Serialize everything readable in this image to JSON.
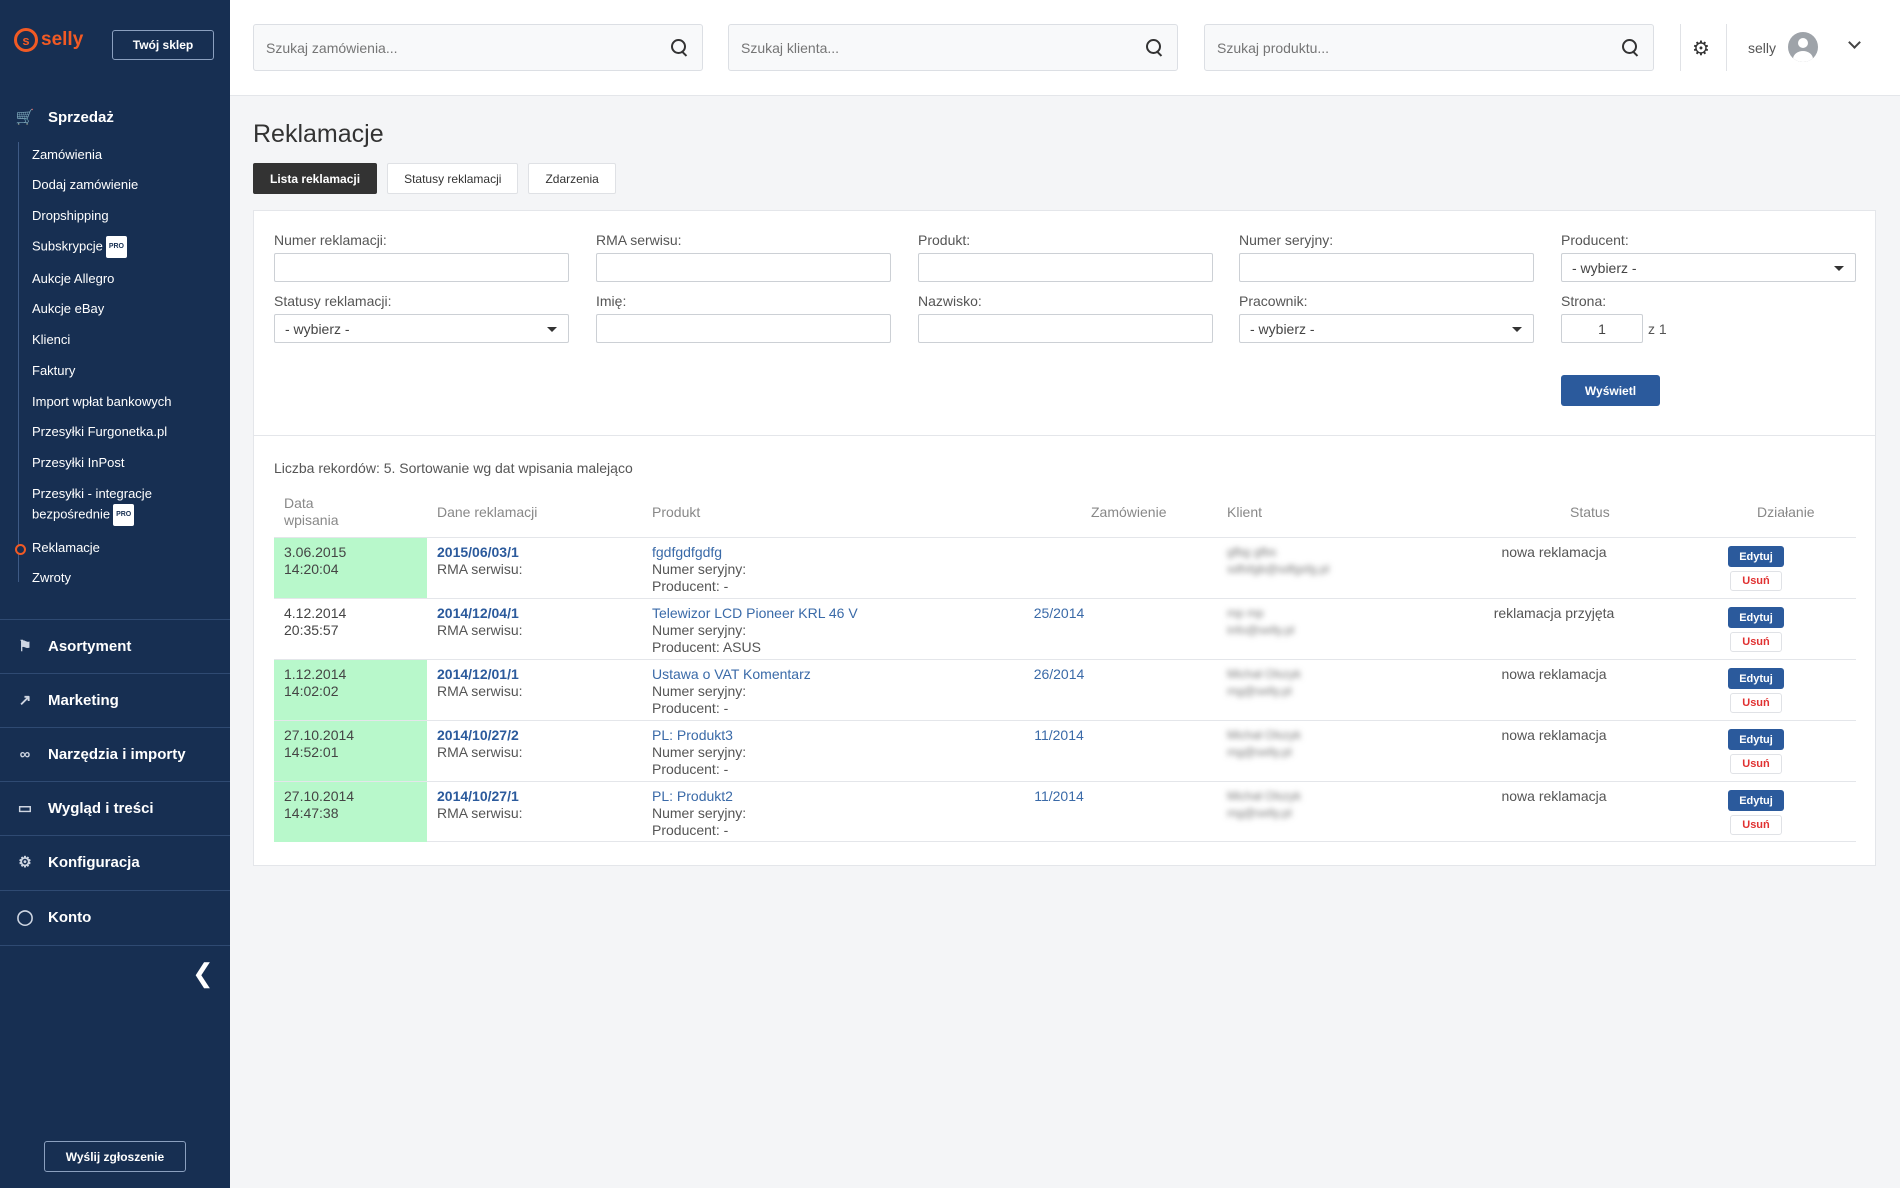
{
  "sidebar": {
    "logo": "selly",
    "shop_button": "Twój sklep",
    "sections": [
      {
        "label": "Sprzedaż",
        "icon": "cart-icon"
      },
      {
        "label": "Asortyment",
        "icon": "tag-icon"
      },
      {
        "label": "Marketing",
        "icon": "chart-icon"
      },
      {
        "label": "Narzędzia i importy",
        "icon": "link-icon"
      },
      {
        "label": "Wygląd i treści",
        "icon": "monitor-icon"
      },
      {
        "label": "Konfiguracja",
        "icon": "gear-icon"
      },
      {
        "label": "Konto",
        "icon": "account-icon"
      }
    ],
    "sub_items": [
      {
        "label": "Zamówienia"
      },
      {
        "label": "Dodaj zamówienie"
      },
      {
        "label": "Dropshipping"
      },
      {
        "label": "Subskrypcje",
        "badge": "PRO"
      },
      {
        "label": "Aukcje Allegro"
      },
      {
        "label": "Aukcje eBay"
      },
      {
        "label": "Klienci"
      },
      {
        "label": "Faktury"
      },
      {
        "label": "Import wpłat bankowych"
      },
      {
        "label": "Przesyłki Furgonetka.pl"
      },
      {
        "label": "Przesyłki InPost"
      },
      {
        "label": "Przesyłki - integracje",
        "label2": "bezpośrednie",
        "badge": "PRO"
      },
      {
        "label": "Reklamacje"
      },
      {
        "label": "Zwroty"
      }
    ],
    "report_button": "Wyślij zgłoszenie"
  },
  "topbar": {
    "search_orders": "Szukaj zamówienia...",
    "search_clients": "Szukaj klienta...",
    "search_products": "Szukaj produktu...",
    "user": "selly"
  },
  "page": {
    "title": "Reklamacje",
    "tabs": [
      "Lista reklamacji",
      "Statusy reklamacji",
      "Zdarzenia"
    ]
  },
  "filters": {
    "numer": "Numer reklamacji:",
    "rma": "RMA serwisu:",
    "produkt": "Produkt:",
    "serial": "Numer seryjny:",
    "producent": "Producent:",
    "producent_value": "- wybierz -",
    "statusy": "Statusy reklamacji:",
    "statusy_value": "- wybierz -",
    "imie": "Imię:",
    "nazwisko": "Nazwisko:",
    "pracownik": "Pracownik:",
    "pracownik_value": "- wybierz -",
    "strona": "Strona:",
    "strona_value": "1",
    "strona_of": "z 1",
    "submit": "Wyświetl"
  },
  "table": {
    "summary": "Liczba rekordów: 5. Sortowanie wg dat wpisania malejąco",
    "headers": {
      "date1": "Data",
      "date2": "wpisania",
      "dane": "Dane reklamacji",
      "produkt": "Produkt",
      "zamowienie": "Zamówienie",
      "klient": "Klient",
      "status": "Status",
      "dzialanie": "Działanie"
    },
    "rma_label": "RMA serwisu:",
    "serial_label": "Numer seryjny:",
    "edit": "Edytuj",
    "delete": "Usuń",
    "rows": [
      {
        "date": "3.06.2015",
        "time": "14:20:04",
        "highlight": true,
        "number": "2015/06/03/1",
        "product": "fgdfgdfgdfg",
        "producer": "Producent: -",
        "order": "",
        "client_name": "gfbg gfbs",
        "client_email": "sdfsfgb@sdfgsfg.pl",
        "status": "nowa reklamacja"
      },
      {
        "date": "4.12.2014",
        "time": "20:35:57",
        "highlight": false,
        "number": "2014/12/04/1",
        "product": "Telewizor LCD Pioneer KRL 46 V",
        "producer": "Producent: ASUS",
        "order": "25/2014",
        "client_name": "mp mp",
        "client_email": "info@selly.pl",
        "status": "reklamacja przyjęta"
      },
      {
        "date": "1.12.2014",
        "time": "14:02:02",
        "highlight": true,
        "number": "2014/12/01/1",
        "product": "Ustawa o VAT Komentarz",
        "producer": "Producent: -",
        "order": "26/2014",
        "client_name": "Michał Olszyk",
        "client_email": "mg@selly.pl",
        "status": "nowa reklamacja"
      },
      {
        "date": "27.10.2014",
        "time": "14:52:01",
        "highlight": true,
        "number": "2014/10/27/2",
        "product": "PL: Produkt3",
        "producer": "Producent: -",
        "order": "11/2014",
        "client_name": "Michał Olszyk",
        "client_email": "mg@selly.pl",
        "status": "nowa reklamacja"
      },
      {
        "date": "27.10.2014",
        "time": "14:47:38",
        "highlight": true,
        "number": "2014/10/27/1",
        "product": "PL: Produkt2",
        "producer": "Producent: -",
        "order": "11/2014",
        "client_name": "Michał Olszyk",
        "client_email": "mg@selly.pl",
        "status": "nowa reklamacja"
      }
    ]
  },
  "colors": {
    "sidebar": "#172f52",
    "accent": "#f15a24",
    "primary_button": "#2b5a9c",
    "highlight_row": "#b8f8cb",
    "delete_text": "#e03131"
  }
}
